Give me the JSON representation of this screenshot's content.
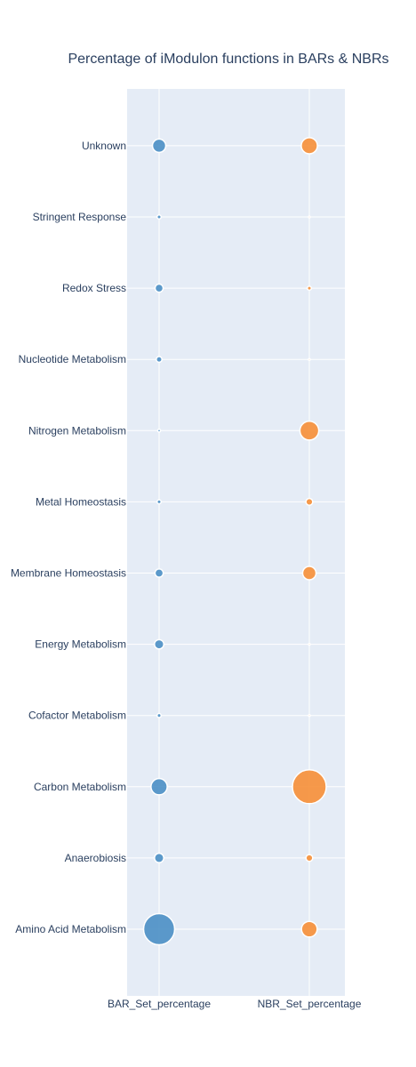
{
  "chart_data": {
    "type": "scatter",
    "title": "Percentage of iModulon functions in BARs & NBRs",
    "xlabel": "",
    "ylabel": "",
    "grid": true,
    "x_categories": [
      "BAR_Set_percentage",
      "NBR_Set_percentage"
    ],
    "y_categories": [
      "Amino Acid Metabolism",
      "Anaerobiosis",
      "Carbon Metabolism",
      "Cofactor Metabolism",
      "Energy Metabolism",
      "Membrane Homeostasis",
      "Metal Homeostasis",
      "Nitrogen Metabolism",
      "Nucleotide Metabolism",
      "Redox Stress",
      "Stringent Response",
      "Unknown"
    ],
    "series": [
      {
        "x": "BAR_Set_percentage",
        "color": "#4a8fc5",
        "values": [
          35.5,
          3.2,
          9.7,
          0.6,
          3.2,
          2.5,
          0.6,
          0.3,
          1.2,
          2.4,
          0.6,
          6.5
        ]
      },
      {
        "x": "NBR_Set_percentage",
        "color": "#f68f37",
        "values": [
          9.0,
          1.7,
          42.0,
          0.0,
          0.0,
          6.6,
          1.7,
          13.1,
          0.0,
          0.6,
          0.1,
          9.6
        ]
      }
    ]
  }
}
